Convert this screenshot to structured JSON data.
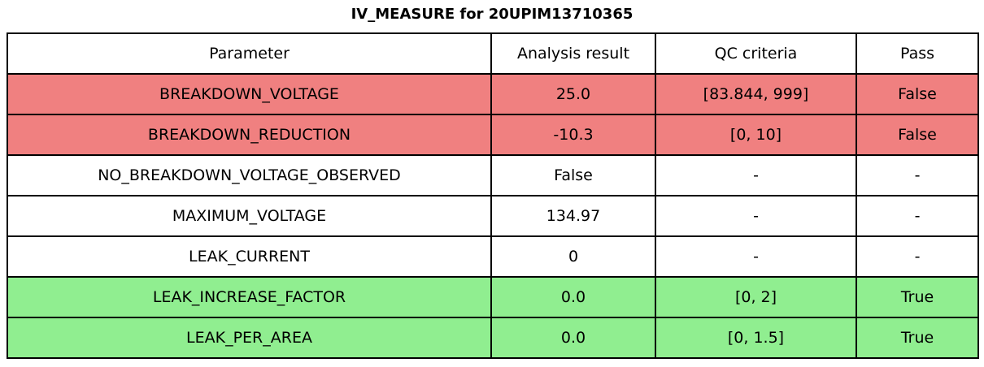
{
  "title": "IV_MEASURE for 20UPIM13710365",
  "chart_data": {
    "type": "table",
    "title": "IV_MEASURE for 20UPIM13710365",
    "columns": [
      "Parameter",
      "Analysis result",
      "QC criteria",
      "Pass"
    ],
    "rows": [
      {
        "parameter": "BREAKDOWN_VOLTAGE",
        "analysis_result": "25.0",
        "qc_criteria": "[83.844, 999]",
        "pass": "False",
        "status": "fail"
      },
      {
        "parameter": "BREAKDOWN_REDUCTION",
        "analysis_result": "-10.3",
        "qc_criteria": "[0, 10]",
        "pass": "False",
        "status": "fail"
      },
      {
        "parameter": "NO_BREAKDOWN_VOLTAGE_OBSERVED",
        "analysis_result": "False",
        "qc_criteria": "-",
        "pass": "-",
        "status": "neutral"
      },
      {
        "parameter": "MAXIMUM_VOLTAGE",
        "analysis_result": "134.97",
        "qc_criteria": "-",
        "pass": "-",
        "status": "neutral"
      },
      {
        "parameter": "LEAK_CURRENT",
        "analysis_result": "0",
        "qc_criteria": "-",
        "pass": "-",
        "status": "neutral"
      },
      {
        "parameter": "LEAK_INCREASE_FACTOR",
        "analysis_result": "0.0",
        "qc_criteria": "[0, 2]",
        "pass": "True",
        "status": "pass"
      },
      {
        "parameter": "LEAK_PER_AREA",
        "analysis_result": "0.0",
        "qc_criteria": "[0, 1.5]",
        "pass": "True",
        "status": "pass"
      }
    ],
    "row_colors": {
      "fail": "#f08080",
      "pass": "#90ee90",
      "neutral": "#ffffff"
    },
    "layout": {
      "header_background": "#ffffff",
      "border_color": "#000000",
      "title_position": "top-center"
    }
  }
}
